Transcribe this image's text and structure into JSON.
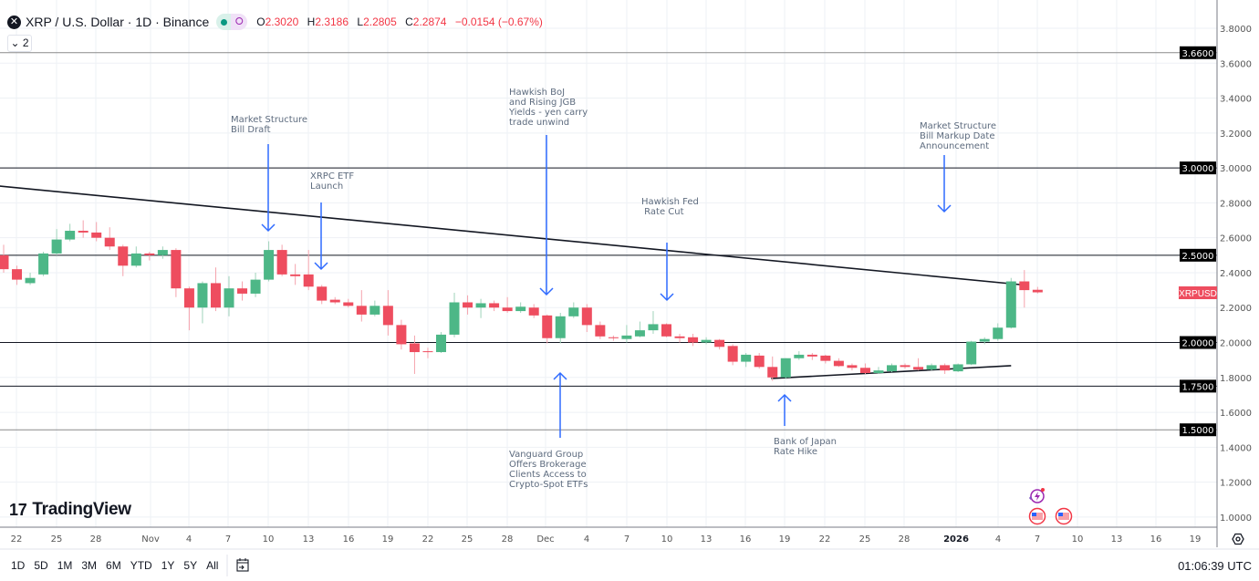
{
  "header": {
    "symbol_icon": "xrp-logo",
    "title": "XRP / U.S. Dollar · 1D · Binance",
    "ohlc": {
      "o_label": "O",
      "o": "2.3020",
      "h_label": "H",
      "h": "2.3186",
      "l_label": "L",
      "l": "2.2805",
      "c_label": "C",
      "c": "2.2874",
      "change": "−0.0154 (−0.67%)"
    },
    "indicators_collapsed": "2"
  },
  "colors": {
    "up": "#4db787",
    "down": "#ee4d5f",
    "arrow": "#2f6bff",
    "grid": "#eef1f5",
    "axis": "#787b86"
  },
  "chart_data": {
    "type": "candlestick",
    "symbol": "XRPUSD",
    "price_axis_labels": [
      "3.8000",
      "3.6000",
      "3.4000",
      "3.2000",
      "3.0000",
      "2.8000",
      "2.6000",
      "2.4000",
      "2.2000",
      "2.0000",
      "1.8000",
      "1.6000",
      "1.4000",
      "1.2000",
      "1.0000"
    ],
    "ylim": [
      0.9,
      3.96
    ],
    "time_axis_labels": [
      "22",
      "25",
      "28",
      "Nov",
      "4",
      "7",
      "10",
      "13",
      "16",
      "19",
      "22",
      "25",
      "28",
      "Dec",
      "4",
      "7",
      "10",
      "13",
      "16",
      "19",
      "22",
      "25",
      "28",
      "2026",
      "4",
      "7",
      "10",
      "13",
      "16",
      "19"
    ],
    "ohlc": [
      [
        2.5,
        2.56,
        2.4,
        2.42
      ],
      [
        2.42,
        2.44,
        2.33,
        2.36
      ],
      [
        2.34,
        2.4,
        2.33,
        2.37
      ],
      [
        2.39,
        2.52,
        2.38,
        2.51
      ],
      [
        2.51,
        2.65,
        2.5,
        2.59
      ],
      [
        2.59,
        2.68,
        2.58,
        2.64
      ],
      [
        2.64,
        2.7,
        2.6,
        2.63
      ],
      [
        2.63,
        2.69,
        2.58,
        2.6
      ],
      [
        2.6,
        2.66,
        2.53,
        2.55
      ],
      [
        2.55,
        2.56,
        2.38,
        2.44
      ],
      [
        2.44,
        2.55,
        2.43,
        2.51
      ],
      [
        2.51,
        2.52,
        2.47,
        2.5
      ],
      [
        2.5,
        2.55,
        2.48,
        2.53
      ],
      [
        2.53,
        2.54,
        2.26,
        2.31
      ],
      [
        2.31,
        2.32,
        2.07,
        2.2
      ],
      [
        2.2,
        2.35,
        2.11,
        2.34
      ],
      [
        2.34,
        2.43,
        2.18,
        2.2
      ],
      [
        2.2,
        2.38,
        2.15,
        2.31
      ],
      [
        2.31,
        2.35,
        2.24,
        2.28
      ],
      [
        2.28,
        2.4,
        2.26,
        2.36
      ],
      [
        2.36,
        2.58,
        2.35,
        2.53
      ],
      [
        2.53,
        2.56,
        2.38,
        2.39
      ],
      [
        2.39,
        2.45,
        2.33,
        2.38
      ],
      [
        2.39,
        2.53,
        2.3,
        2.32
      ],
      [
        2.32,
        2.33,
        2.22,
        2.24
      ],
      [
        2.245,
        2.26,
        2.22,
        2.23
      ],
      [
        2.23,
        2.25,
        2.2,
        2.21
      ],
      [
        2.21,
        2.3,
        2.12,
        2.16
      ],
      [
        2.16,
        2.24,
        2.15,
        2.21
      ],
      [
        2.21,
        2.3,
        2.04,
        2.1
      ],
      [
        2.1,
        2.13,
        1.96,
        1.99
      ],
      [
        1.995,
        2.04,
        1.82,
        1.945
      ],
      [
        1.95,
        1.97,
        1.91,
        1.945
      ],
      [
        1.945,
        2.06,
        1.94,
        2.045
      ],
      [
        2.045,
        2.285,
        2.03,
        2.23
      ],
      [
        2.23,
        2.27,
        2.16,
        2.2
      ],
      [
        2.2,
        2.25,
        2.14,
        2.225
      ],
      [
        2.225,
        2.24,
        2.18,
        2.2
      ],
      [
        2.2,
        2.26,
        2.17,
        2.18
      ],
      [
        2.18,
        2.23,
        2.17,
        2.205
      ],
      [
        2.2,
        2.22,
        2.14,
        2.155
      ],
      [
        2.155,
        2.16,
        1.995,
        2.025
      ],
      [
        2.025,
        2.17,
        1.995,
        2.15
      ],
      [
        2.15,
        2.23,
        2.14,
        2.2
      ],
      [
        2.2,
        2.22,
        2.06,
        2.1
      ],
      [
        2.1,
        2.12,
        2.02,
        2.035
      ],
      [
        2.03,
        2.04,
        2.01,
        2.025
      ],
      [
        2.02,
        2.1,
        2.0,
        2.04
      ],
      [
        2.035,
        2.12,
        2.03,
        2.07
      ],
      [
        2.07,
        2.18,
        2.05,
        2.105
      ],
      [
        2.105,
        2.11,
        2.03,
        2.035
      ],
      [
        2.035,
        2.05,
        2.0,
        2.025
      ],
      [
        2.03,
        2.05,
        1.98,
        2.0
      ],
      [
        2.0,
        2.03,
        1.99,
        2.015
      ],
      [
        2.015,
        2.02,
        1.96,
        1.975
      ],
      [
        1.98,
        1.99,
        1.87,
        1.89
      ],
      [
        1.89,
        1.94,
        1.86,
        1.93
      ],
      [
        1.925,
        1.94,
        1.85,
        1.86
      ],
      [
        1.86,
        1.92,
        1.78,
        1.8
      ],
      [
        1.8,
        1.91,
        1.79,
        1.91
      ],
      [
        1.91,
        1.95,
        1.9,
        1.93
      ],
      [
        1.93,
        1.94,
        1.9,
        1.92
      ],
      [
        1.925,
        1.93,
        1.88,
        1.895
      ],
      [
        1.895,
        1.91,
        1.86,
        1.865
      ],
      [
        1.87,
        1.88,
        1.84,
        1.855
      ],
      [
        1.855,
        1.88,
        1.82,
        1.825
      ],
      [
        1.825,
        1.86,
        1.82,
        1.84
      ],
      [
        1.835,
        1.88,
        1.83,
        1.87
      ],
      [
        1.87,
        1.88,
        1.85,
        1.86
      ],
      [
        1.86,
        1.91,
        1.84,
        1.845
      ],
      [
        1.845,
        1.88,
        1.84,
        1.87
      ],
      [
        1.87,
        1.88,
        1.82,
        1.84
      ],
      [
        1.835,
        1.88,
        1.83,
        1.875
      ],
      [
        1.875,
        2.01,
        1.87,
        2.005
      ],
      [
        2.005,
        2.03,
        1.99,
        2.02
      ],
      [
        2.02,
        2.11,
        2.01,
        2.085
      ],
      [
        2.085,
        2.37,
        2.08,
        2.35
      ],
      [
        2.35,
        2.415,
        2.2,
        2.3
      ],
      [
        2.302,
        2.3186,
        2.2805,
        2.2874
      ]
    ],
    "horizontal_levels": [
      {
        "price": 3.66,
        "label": "3.6600"
      },
      {
        "price": 3.0,
        "label": "3.0000"
      },
      {
        "price": 2.5,
        "label": "2.5000"
      },
      {
        "price": 2.0,
        "label": "2.0000"
      },
      {
        "price": 1.75,
        "label": "1.7500"
      },
      {
        "price": 1.5,
        "label": "1.5000"
      }
    ],
    "trendlines": [
      {
        "name": "descending-resistance",
        "from": [
          -0.3,
          2.896
        ],
        "to": [
          77.2,
          2.328
        ]
      },
      {
        "name": "ascending-support",
        "from": [
          57.9,
          1.794
        ],
        "to": [
          76,
          1.867
        ]
      }
    ],
    "last_price_tag": "XRPUSD"
  },
  "annotations": [
    {
      "id": "msb-draft",
      "lines": [
        "Market Structure",
        "Bill Draft"
      ]
    },
    {
      "id": "xrpc-etf",
      "lines": [
        "XRPC ETF",
        "Launch"
      ]
    },
    {
      "id": "hawkish-boj",
      "lines": [
        "Hawkish BoJ",
        "and Rising JGB",
        "Yields - yen carry",
        "trade unwind"
      ]
    },
    {
      "id": "hawkish-fed",
      "lines": [
        "Hawkish Fed",
        " Rate Cut"
      ]
    },
    {
      "id": "msb-markup",
      "lines": [
        "Market Structure",
        "Bill Markup Date",
        "Announcement"
      ]
    },
    {
      "id": "vanguard",
      "lines": [
        "Vanguard Group",
        "Offers Brokerage",
        "Clients Access to",
        "Crypto-Spot ETFs"
      ]
    },
    {
      "id": "boj-hike",
      "lines": [
        "Bank of Japan",
        "Rate Hike"
      ]
    }
  ],
  "branding": {
    "logo_text": "TradingView"
  },
  "footer": {
    "ranges": [
      "1D",
      "5D",
      "1M",
      "3M",
      "6M",
      "YTD",
      "1Y",
      "5Y",
      "All"
    ],
    "clock": "01:06:39 UTC"
  }
}
